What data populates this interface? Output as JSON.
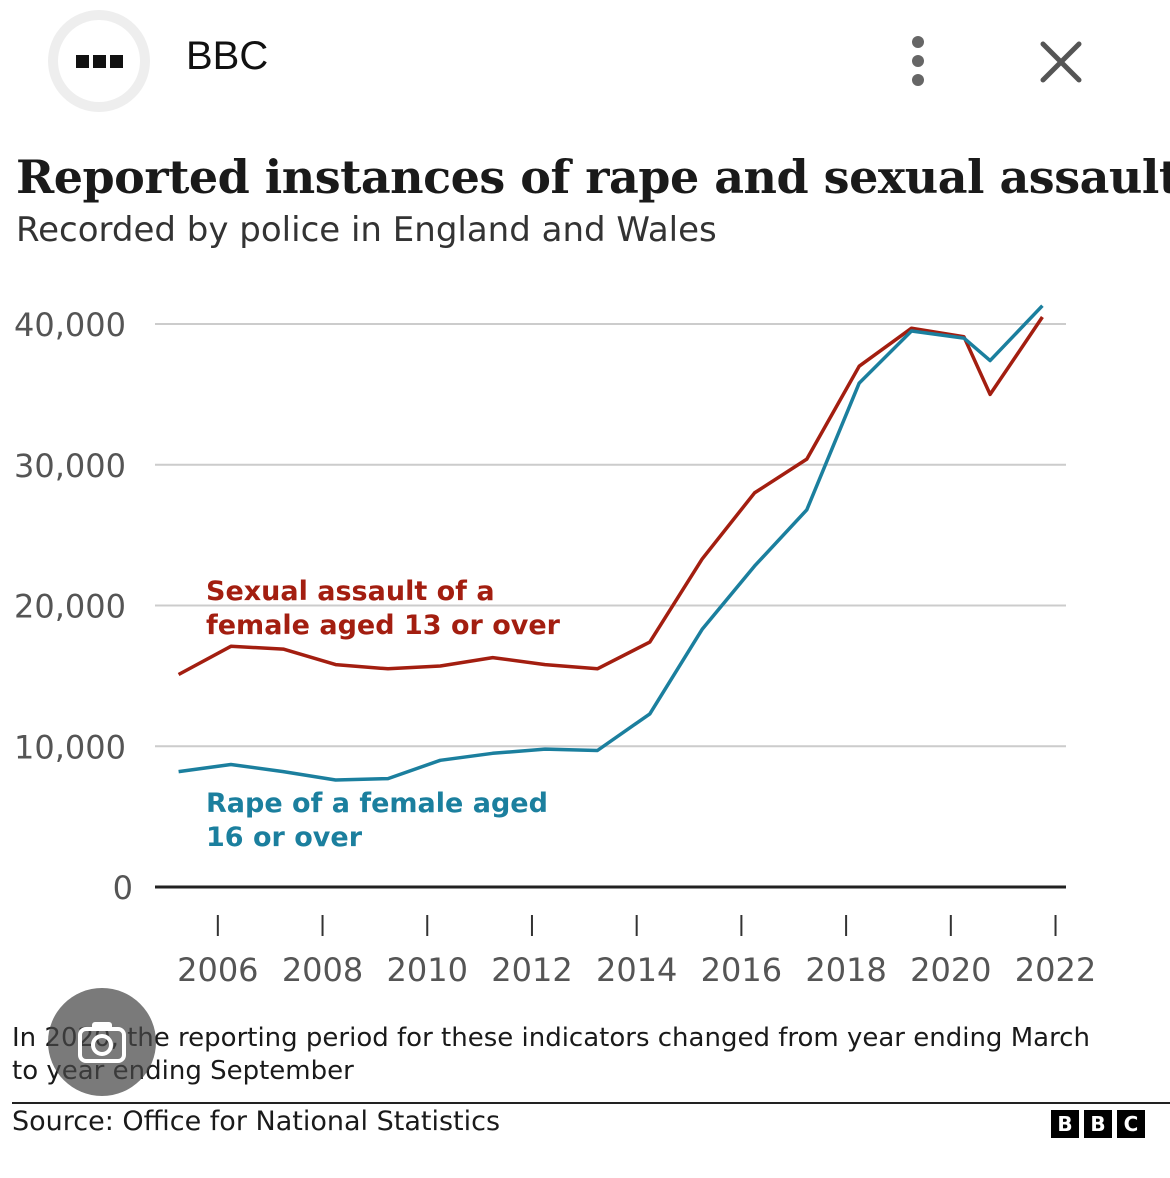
{
  "browser": {
    "app_name": "BBC",
    "menu_icon": "kebab-menu-icon",
    "close_icon": "close-icon",
    "badge_icon": "app-grid-icon"
  },
  "chart_data": {
    "type": "line",
    "title": "Reported instances of rape and sexual assault",
    "subtitle": "Recorded by police in England and Wales",
    "xlabel": "",
    "ylabel": "",
    "x_ticks": [
      "2006",
      "2008",
      "2010",
      "2012",
      "2014",
      "2016",
      "2018",
      "2020",
      "2022"
    ],
    "y_ticks": [
      "0",
      "10,000",
      "20,000",
      "30,000",
      "40,000"
    ],
    "xlim": [
      2004.8,
      2022.2
    ],
    "ylim": [
      0,
      40000
    ],
    "grid": true,
    "colors": {
      "sexual_assault": "#a31e10",
      "rape": "#1b7f9e"
    },
    "series": [
      {
        "name": "Sexual assault of a female aged 13 or over",
        "label_lines": [
          "Sexual assault of a",
          "female aged 13 or over"
        ],
        "color": "#a31e10",
        "points": [
          [
            2005.25,
            15100
          ],
          [
            2006.25,
            17100
          ],
          [
            2007.25,
            16900
          ],
          [
            2008.25,
            15800
          ],
          [
            2009.25,
            15500
          ],
          [
            2010.25,
            15700
          ],
          [
            2011.25,
            16300
          ],
          [
            2012.25,
            15800
          ],
          [
            2013.25,
            15500
          ],
          [
            2014.25,
            17400
          ],
          [
            2015.25,
            23300
          ],
          [
            2016.25,
            28000
          ],
          [
            2017.25,
            30400
          ],
          [
            2018.25,
            37000
          ],
          [
            2019.25,
            39700
          ],
          [
            2020.25,
            39100
          ],
          [
            2020.75,
            35000
          ],
          [
            2021.75,
            40500
          ]
        ]
      },
      {
        "name": "Rape of a female aged 16 or over",
        "label_lines": [
          "Rape of a female aged",
          "16 or over"
        ],
        "color": "#1b7f9e",
        "points": [
          [
            2005.25,
            8200
          ],
          [
            2006.25,
            8700
          ],
          [
            2007.25,
            8200
          ],
          [
            2008.25,
            7600
          ],
          [
            2009.25,
            7700
          ],
          [
            2010.25,
            9000
          ],
          [
            2011.25,
            9500
          ],
          [
            2012.25,
            9800
          ],
          [
            2013.25,
            9700
          ],
          [
            2014.25,
            12300
          ],
          [
            2015.25,
            18300
          ],
          [
            2016.25,
            22800
          ],
          [
            2017.25,
            26800
          ],
          [
            2018.25,
            35800
          ],
          [
            2019.25,
            39500
          ],
          [
            2020.25,
            39000
          ],
          [
            2020.75,
            37400
          ],
          [
            2021.75,
            41300
          ]
        ]
      }
    ]
  },
  "footer": {
    "note": "In 2020, the reporting period for these indicators changed from year ending March to year ending September",
    "source": "Source: Office for National Statistics",
    "logo_letters": [
      "B",
      "B",
      "C"
    ],
    "camera_icon": "visual-search-camera-icon"
  }
}
